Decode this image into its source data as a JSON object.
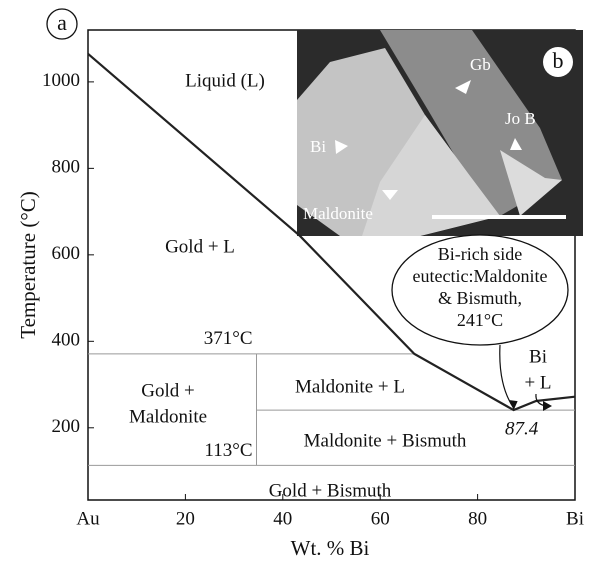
{
  "chart_data": {
    "type": "line",
    "panel_label": "a",
    "y_label": "Temperature (°C)",
    "x_label": "Wt. % Bi",
    "xlim": [
      0,
      100
    ],
    "ylim": [
      33,
      1120
    ],
    "xticks": [
      {
        "value": 0,
        "label": "Au"
      },
      20,
      40,
      60,
      80,
      {
        "value": 100,
        "label": "Bi"
      }
    ],
    "yticks": [
      200,
      400,
      600,
      800,
      1000
    ],
    "color": "#222222",
    "x": [
      0,
      43.5,
      67,
      87.4,
      92,
      100
    ],
    "values": [
      1065,
      644,
      371,
      241,
      262,
      272
    ],
    "isotherms": [
      {
        "value": 371,
        "label": "371°C",
        "x": [
          0,
          67
        ]
      },
      {
        "value": 241,
        "x": [
          34.6,
          100
        ]
      },
      {
        "value": 113,
        "label": "113°C",
        "x": [
          0,
          100
        ]
      }
    ],
    "maldonite_line": {
      "value": 34.6,
      "y": [
        113,
        371
      ]
    },
    "eutectic": {
      "x": 87.4,
      "label": "87.4",
      "temperature": 241,
      "callout": [
        "Bi-rich side",
        "eutectic:Maldonite",
        "& Bismuth,",
        "241°C"
      ]
    },
    "regions": [
      [
        "Liquid (L)"
      ],
      [
        "Gold + L"
      ],
      [
        "Gold +",
        "Maldonite"
      ],
      [
        "Maldonite + L"
      ],
      [
        "Maldonite + Bismuth"
      ],
      [
        "Gold + Bismuth"
      ],
      [
        "Bi",
        "+ L"
      ]
    ]
  },
  "inset": {
    "panel_label": "b",
    "labels": [
      "Gb",
      "Jo B",
      "Bi",
      "Maldonite"
    ]
  }
}
